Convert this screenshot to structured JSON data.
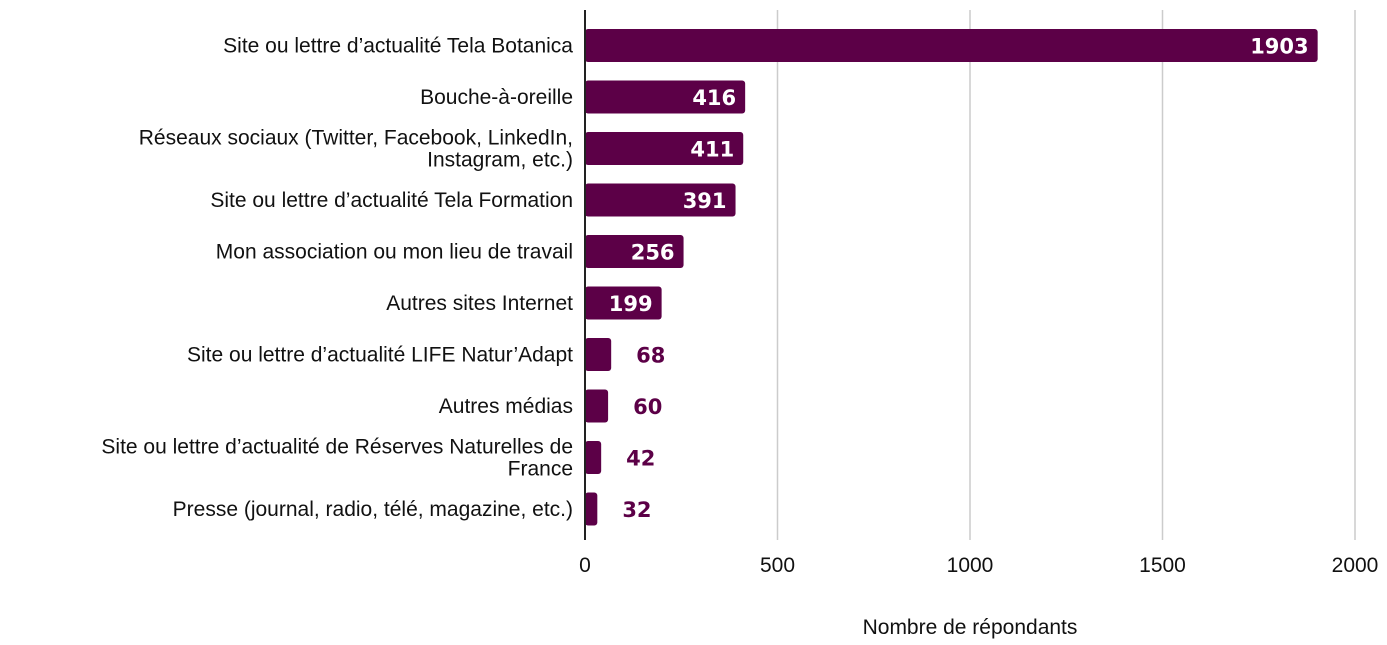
{
  "chart_data": {
    "type": "bar",
    "orientation": "horizontal",
    "categories": [
      [
        "Site ou lettre d’actualité Tela Botanica"
      ],
      [
        "Bouche-à-oreille"
      ],
      [
        "Réseaux sociaux (Twitter, Facebook, LinkedIn,",
        "Instagram, etc.)"
      ],
      [
        "Site ou lettre d’actualité Tela Formation"
      ],
      [
        "Mon association ou mon lieu de travail"
      ],
      [
        "Autres sites Internet"
      ],
      [
        "Site ou lettre d’actualité LIFE Natur’Adapt"
      ],
      [
        "Autres médias"
      ],
      [
        "Site ou lettre d’actualité de Réserves Naturelles de",
        "France"
      ],
      [
        "Presse (journal, radio, télé, magazine, etc.)"
      ]
    ],
    "values": [
      1903,
      416,
      411,
      391,
      256,
      199,
      68,
      60,
      42,
      32
    ],
    "data_labels": [
      "1903",
      "416",
      "411",
      "391",
      "256",
      "199",
      "68",
      "60",
      "42",
      "32"
    ],
    "xlabel": "Nombre de répondants",
    "ylabel": "",
    "title": "",
    "xlim": [
      0,
      2000
    ],
    "xticks": [
      0,
      500,
      1000,
      1500,
      2000
    ],
    "xtick_labels": [
      "0",
      "500",
      "1000",
      "1500",
      "2000"
    ],
    "grid": "vertical",
    "legend": "none",
    "colors": {
      "bar": "#5c0047",
      "label_inside": "#ffffff",
      "label_outside": "#5c0047",
      "grid": "#cccccc",
      "axis": "#222222"
    }
  }
}
